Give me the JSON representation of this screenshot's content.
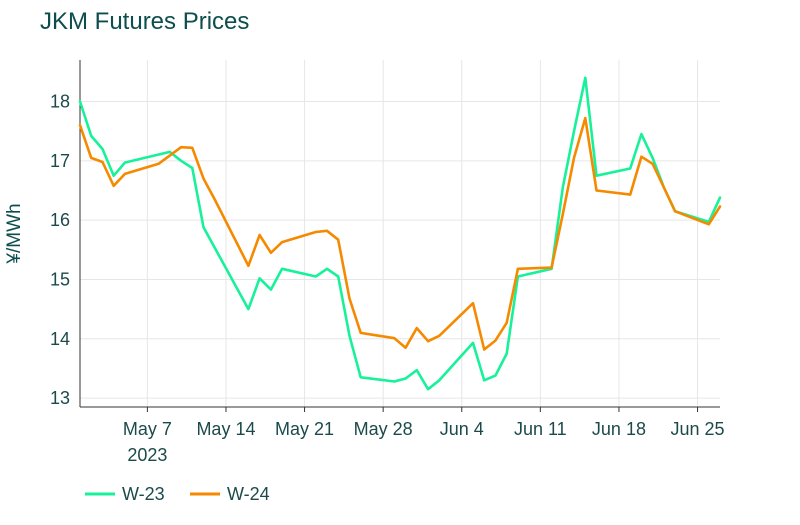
{
  "chart_data": {
    "type": "line",
    "title": "JKM Futures Prices",
    "ylabel": "¥/MWh",
    "xlabel": "",
    "ylim": [
      12.85,
      18.7
    ],
    "xlim": [
      "2023-05-01",
      "2023-06-27"
    ],
    "yticks": [
      13,
      14,
      15,
      16,
      17,
      18
    ],
    "xticks": [
      {
        "date": "2023-05-07",
        "label": "May 7",
        "sublabel": "2023"
      },
      {
        "date": "2023-05-14",
        "label": "May 14",
        "sublabel": ""
      },
      {
        "date": "2023-05-21",
        "label": "May 21",
        "sublabel": ""
      },
      {
        "date": "2023-05-28",
        "label": "May 28",
        "sublabel": ""
      },
      {
        "date": "2023-06-04",
        "label": "Jun 4",
        "sublabel": ""
      },
      {
        "date": "2023-06-11",
        "label": "Jun 11",
        "sublabel": ""
      },
      {
        "date": "2023-06-18",
        "label": "Jun 18",
        "sublabel": ""
      },
      {
        "date": "2023-06-25",
        "label": "Jun 25",
        "sublabel": ""
      }
    ],
    "grid": true,
    "legend": "bottom-left",
    "series": [
      {
        "name": "W-23",
        "color": "#17f29a",
        "x": [
          "2023-05-01",
          "2023-05-02",
          "2023-05-03",
          "2023-05-04",
          "2023-05-05",
          "2023-05-09",
          "2023-05-10",
          "2023-05-11",
          "2023-05-12",
          "2023-05-16",
          "2023-05-17",
          "2023-05-18",
          "2023-05-19",
          "2023-05-22",
          "2023-05-23",
          "2023-05-24",
          "2023-05-25",
          "2023-05-26",
          "2023-05-29",
          "2023-05-30",
          "2023-05-31",
          "2023-06-01",
          "2023-06-02",
          "2023-06-05",
          "2023-06-06",
          "2023-06-07",
          "2023-06-08",
          "2023-06-09",
          "2023-06-12",
          "2023-06-13",
          "2023-06-14",
          "2023-06-15",
          "2023-06-16",
          "2023-06-19",
          "2023-06-20",
          "2023-06-21",
          "2023-06-22",
          "2023-06-23",
          "2023-06-26",
          "2023-06-27"
        ],
        "y": [
          18.0,
          17.42,
          17.2,
          16.75,
          16.97,
          17.15,
          17.0,
          16.88,
          15.88,
          14.5,
          15.02,
          14.83,
          15.18,
          15.05,
          15.18,
          15.05,
          14.05,
          13.35,
          13.28,
          13.33,
          13.47,
          13.15,
          13.3,
          13.93,
          13.3,
          13.38,
          13.75,
          15.05,
          15.18,
          16.55,
          17.5,
          18.4,
          16.75,
          16.87,
          17.45,
          17.05,
          16.55,
          16.15,
          15.97,
          16.38
        ]
      },
      {
        "name": "W-24",
        "color": "#f58a00",
        "x": [
          "2023-05-01",
          "2023-05-02",
          "2023-05-03",
          "2023-05-04",
          "2023-05-05",
          "2023-05-08",
          "2023-05-10",
          "2023-05-11",
          "2023-05-12",
          "2023-05-13",
          "2023-05-16",
          "2023-05-17",
          "2023-05-18",
          "2023-05-19",
          "2023-05-22",
          "2023-05-23",
          "2023-05-24",
          "2023-05-25",
          "2023-05-26",
          "2023-05-29",
          "2023-05-30",
          "2023-05-31",
          "2023-06-01",
          "2023-06-02",
          "2023-06-05",
          "2023-06-06",
          "2023-06-07",
          "2023-06-08",
          "2023-06-09",
          "2023-06-12",
          "2023-06-13",
          "2023-06-14",
          "2023-06-15",
          "2023-06-16",
          "2023-06-19",
          "2023-06-20",
          "2023-06-21",
          "2023-06-22",
          "2023-06-23",
          "2023-06-26",
          "2023-06-27"
        ],
        "y": [
          17.6,
          17.05,
          16.98,
          16.58,
          16.78,
          16.95,
          17.23,
          17.22,
          16.7,
          16.35,
          15.23,
          15.75,
          15.45,
          15.63,
          15.8,
          15.82,
          15.67,
          14.68,
          14.1,
          14.01,
          13.85,
          14.18,
          13.96,
          14.05,
          14.6,
          13.82,
          13.97,
          14.27,
          15.18,
          15.2,
          16.1,
          17.05,
          17.72,
          16.5,
          16.43,
          17.07,
          16.95,
          16.55,
          16.15,
          15.93,
          16.23
        ]
      }
    ]
  }
}
